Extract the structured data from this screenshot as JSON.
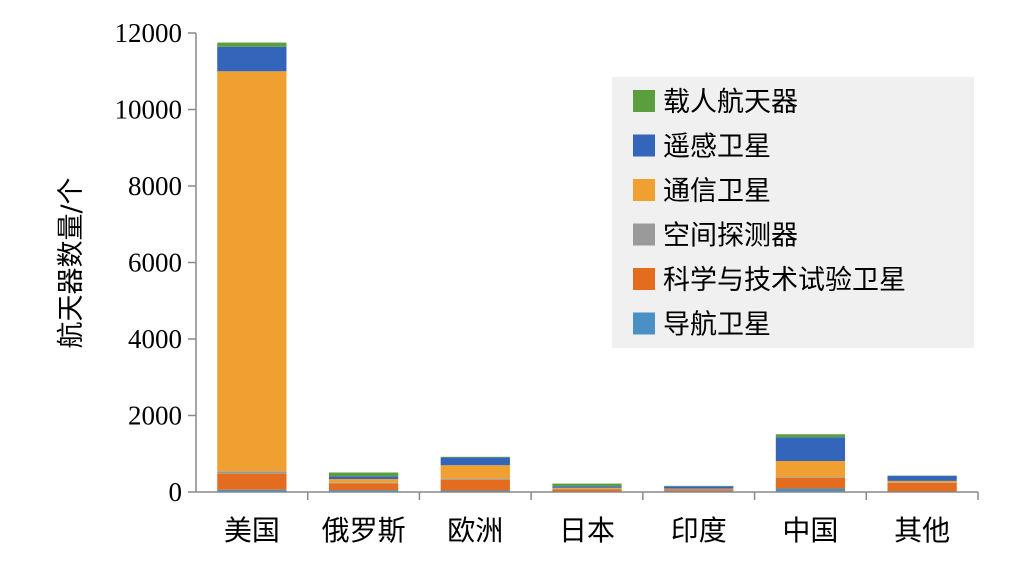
{
  "chart_data": {
    "type": "bar",
    "stacked": true,
    "ylabel": "航天器数量/个",
    "ylim": [
      0,
      12000
    ],
    "yticks": [
      "0",
      "2000",
      "4000",
      "6000",
      "8000",
      "10000",
      "12000"
    ],
    "categories": [
      "美国",
      "俄罗斯",
      "欧洲",
      "日本",
      "印度",
      "中国",
      "其他"
    ],
    "series": [
      {
        "name": "导航卫星",
        "color": "#4a90c4",
        "values": [
          60,
          50,
          40,
          10,
          30,
          90,
          10
        ]
      },
      {
        "name": "科学与技术试验卫星",
        "color": "#e46c1f",
        "values": [
          420,
          170,
          280,
          60,
          40,
          280,
          230
        ]
      },
      {
        "name": "空间探测器",
        "color": "#9a9a9a",
        "values": [
          60,
          20,
          30,
          10,
          10,
          20,
          10
        ]
      },
      {
        "name": "通信卫星",
        "color": "#f0a030",
        "values": [
          10460,
          100,
          350,
          30,
          10,
          420,
          40
        ]
      },
      {
        "name": "遥感卫星",
        "color": "#3366bb",
        "values": [
          640,
          70,
          200,
          40,
          60,
          620,
          130
        ]
      },
      {
        "name": "载人航天器",
        "color": "#5a9e3e",
        "values": [
          110,
          100,
          20,
          70,
          10,
          80,
          10
        ]
      }
    ],
    "legend_position": "top-right",
    "legend_order": [
      "载人航天器",
      "遥感卫星",
      "通信卫星",
      "空间探测器",
      "科学与技术试验卫星",
      "导航卫星"
    ],
    "grid": false
  }
}
